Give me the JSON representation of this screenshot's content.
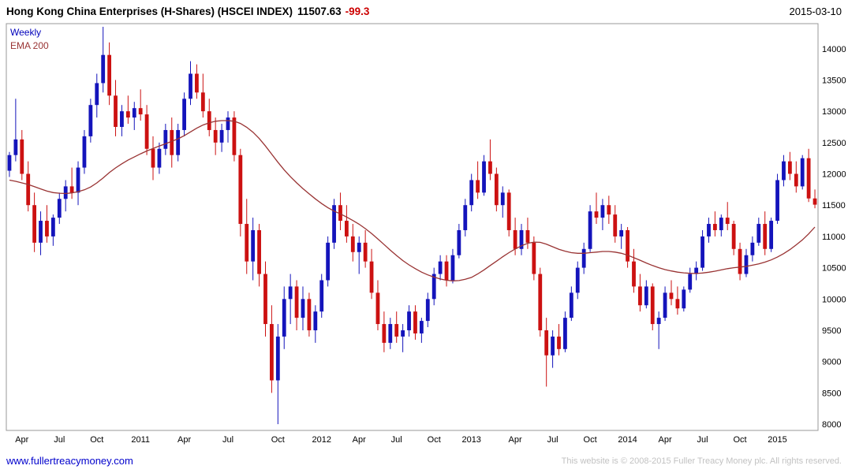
{
  "header": {
    "title": "Hong Kong China Enterprises (H-Shares) (HSCEI INDEX)",
    "price": "11507.63",
    "change": "-99.3",
    "date": "2015-03-10"
  },
  "legend": {
    "series": "Weekly",
    "overlay": "EMA 200"
  },
  "footer": {
    "website": "www.fullertreacymoney.com",
    "copyright": "This website is © 2008-2015 Fuller Treacy Money plc. All rights reserved."
  },
  "chart_data": {
    "type": "candlestick",
    "title": "Hong Kong China Enterprises (H-Shares) (HSCEI INDEX)",
    "timeframe": "Weekly",
    "last_price": 11507.63,
    "change": -99.3,
    "date": "2015-03-10",
    "ylim": [
      7900,
      14400
    ],
    "y_ticks": [
      8000,
      8500,
      9000,
      9500,
      10000,
      10500,
      11000,
      11500,
      12000,
      12500,
      13000,
      13500,
      14000
    ],
    "x_ticks": [
      {
        "label": "Apr",
        "i": 2
      },
      {
        "label": "Jul",
        "i": 8
      },
      {
        "label": "Oct",
        "i": 14
      },
      {
        "label": "2011",
        "i": 21
      },
      {
        "label": "Apr",
        "i": 28
      },
      {
        "label": "Jul",
        "i": 35
      },
      {
        "label": "Oct",
        "i": 43
      },
      {
        "label": "2012",
        "i": 50
      },
      {
        "label": "Apr",
        "i": 56
      },
      {
        "label": "Jul",
        "i": 62
      },
      {
        "label": "Oct",
        "i": 68
      },
      {
        "label": "2013",
        "i": 74
      },
      {
        "label": "Apr",
        "i": 81
      },
      {
        "label": "Jul",
        "i": 87
      },
      {
        "label": "Oct",
        "i": 93
      },
      {
        "label": "2014",
        "i": 99
      },
      {
        "label": "Apr",
        "i": 105
      },
      {
        "label": "Jul",
        "i": 111
      },
      {
        "label": "Oct",
        "i": 117
      },
      {
        "label": "2015",
        "i": 123
      }
    ],
    "colors": {
      "up": "#1414bb",
      "down": "#cc1111",
      "border": "#999999"
    },
    "candles": [
      [
        12050,
        12350,
        11950,
        12300
      ],
      [
        12300,
        13200,
        12200,
        12550
      ],
      [
        12550,
        12700,
        11900,
        12000
      ],
      [
        12000,
        12200,
        11400,
        11500
      ],
      [
        11500,
        11700,
        10750,
        10900
      ],
      [
        10900,
        11400,
        10700,
        11250
      ],
      [
        11250,
        11500,
        10900,
        11000
      ],
      [
        11000,
        11350,
        10850,
        11300
      ],
      [
        11300,
        11700,
        11200,
        11600
      ],
      [
        11600,
        11900,
        11400,
        11800
      ],
      [
        11800,
        12100,
        11600,
        11700
      ],
      [
        11700,
        12200,
        11500,
        12100
      ],
      [
        12100,
        12700,
        12000,
        12600
      ],
      [
        12600,
        13200,
        12500,
        13100
      ],
      [
        13100,
        13600,
        12900,
        13450
      ],
      [
        13450,
        14350,
        13300,
        13900
      ],
      [
        13900,
        14100,
        13100,
        13250
      ],
      [
        13250,
        13500,
        12600,
        12750
      ],
      [
        12750,
        13100,
        12600,
        13000
      ],
      [
        13000,
        13250,
        12800,
        12900
      ],
      [
        12900,
        13150,
        12700,
        13050
      ],
      [
        13050,
        13350,
        12850,
        12950
      ],
      [
        12950,
        13100,
        12300,
        12400
      ],
      [
        12400,
        12600,
        11900,
        12100
      ],
      [
        12100,
        12500,
        12000,
        12400
      ],
      [
        12400,
        12800,
        12300,
        12700
      ],
      [
        12700,
        12900,
        12100,
        12300
      ],
      [
        12300,
        12800,
        12200,
        12700
      ],
      [
        12700,
        13300,
        12600,
        13200
      ],
      [
        13200,
        13800,
        13100,
        13600
      ],
      [
        13600,
        13750,
        13200,
        13300
      ],
      [
        13300,
        13600,
        12900,
        13000
      ],
      [
        13000,
        13200,
        12600,
        12700
      ],
      [
        12700,
        12900,
        12300,
        12500
      ],
      [
        12500,
        12800,
        12350,
        12700
      ],
      [
        12700,
        13000,
        12500,
        12900
      ],
      [
        12900,
        13000,
        12200,
        12300
      ],
      [
        12300,
        12400,
        11000,
        11200
      ],
      [
        11200,
        11600,
        10400,
        10600
      ],
      [
        10600,
        11300,
        10300,
        11100
      ],
      [
        11100,
        11200,
        10200,
        10400
      ],
      [
        10400,
        10600,
        9400,
        9600
      ],
      [
        9600,
        9900,
        8500,
        8700
      ],
      [
        8700,
        9600,
        8000,
        9400
      ],
      [
        9400,
        10200,
        9200,
        10000
      ],
      [
        10000,
        10400,
        9600,
        10200
      ],
      [
        10200,
        10300,
        9500,
        9700
      ],
      [
        9700,
        10200,
        9500,
        10000
      ],
      [
        10000,
        10100,
        9400,
        9500
      ],
      [
        9500,
        9900,
        9300,
        9800
      ],
      [
        9800,
        10400,
        9700,
        10300
      ],
      [
        10300,
        11000,
        10200,
        10900
      ],
      [
        10900,
        11600,
        10800,
        11500
      ],
      [
        11500,
        11700,
        11100,
        11250
      ],
      [
        11250,
        11500,
        10900,
        11000
      ],
      [
        11000,
        11200,
        10600,
        10750
      ],
      [
        10750,
        11000,
        10400,
        10900
      ],
      [
        10900,
        11100,
        10500,
        10600
      ],
      [
        10600,
        10800,
        10000,
        10100
      ],
      [
        10100,
        10300,
        9500,
        9600
      ],
      [
        9600,
        9800,
        9150,
        9300
      ],
      [
        9300,
        9700,
        9200,
        9600
      ],
      [
        9600,
        9800,
        9300,
        9400
      ],
      [
        9400,
        9600,
        9150,
        9500
      ],
      [
        9500,
        9900,
        9400,
        9800
      ],
      [
        9800,
        9900,
        9350,
        9450
      ],
      [
        9450,
        9700,
        9300,
        9650
      ],
      [
        9650,
        10100,
        9550,
        10000
      ],
      [
        10000,
        10500,
        9900,
        10400
      ],
      [
        10400,
        10700,
        10300,
        10600
      ],
      [
        10600,
        10700,
        10200,
        10300
      ],
      [
        10300,
        10800,
        10250,
        10700
      ],
      [
        10700,
        11200,
        10650,
        11100
      ],
      [
        11100,
        11600,
        11000,
        11500
      ],
      [
        11500,
        12000,
        11400,
        11900
      ],
      [
        11900,
        12200,
        11600,
        11700
      ],
      [
        11700,
        12300,
        11650,
        12200
      ],
      [
        12200,
        12550,
        11900,
        12000
      ],
      [
        12000,
        12100,
        11400,
        11500
      ],
      [
        11500,
        11800,
        11300,
        11700
      ],
      [
        11700,
        11750,
        11000,
        11100
      ],
      [
        11100,
        11300,
        10700,
        10800
      ],
      [
        10800,
        11200,
        10700,
        11100
      ],
      [
        11100,
        11300,
        10800,
        10900
      ],
      [
        10900,
        11000,
        10300,
        10400
      ],
      [
        10400,
        10500,
        9400,
        9500
      ],
      [
        9500,
        9700,
        8600,
        9100
      ],
      [
        9100,
        9500,
        8900,
        9400
      ],
      [
        9400,
        9600,
        9100,
        9200
      ],
      [
        9200,
        9800,
        9150,
        9700
      ],
      [
        9700,
        10200,
        9650,
        10100
      ],
      [
        10100,
        10600,
        10000,
        10500
      ],
      [
        10500,
        10900,
        10400,
        10800
      ],
      [
        10800,
        11500,
        10750,
        11400
      ],
      [
        11400,
        11700,
        11200,
        11300
      ],
      [
        11300,
        11600,
        11100,
        11500
      ],
      [
        11500,
        11650,
        11200,
        11350
      ],
      [
        11350,
        11500,
        10900,
        11000
      ],
      [
        11000,
        11200,
        10800,
        11100
      ],
      [
        11100,
        11150,
        10500,
        10600
      ],
      [
        10600,
        10800,
        10100,
        10200
      ],
      [
        10200,
        10400,
        9800,
        9900
      ],
      [
        9900,
        10300,
        9850,
        10200
      ],
      [
        10200,
        10250,
        9500,
        9600
      ],
      [
        9600,
        9800,
        9200,
        9700
      ],
      [
        9700,
        10200,
        9650,
        10100
      ],
      [
        10100,
        10300,
        9900,
        10000
      ],
      [
        10000,
        10200,
        9750,
        9850
      ],
      [
        9850,
        10200,
        9800,
        10150
      ],
      [
        10150,
        10500,
        10100,
        10400
      ],
      [
        10400,
        10600,
        10300,
        10500
      ],
      [
        10500,
        11100,
        10450,
        11000
      ],
      [
        11000,
        11300,
        10900,
        11200
      ],
      [
        11200,
        11400,
        11000,
        11100
      ],
      [
        11100,
        11350,
        11000,
        11300
      ],
      [
        11300,
        11550,
        11100,
        11200
      ],
      [
        11200,
        11250,
        10700,
        10800
      ],
      [
        10800,
        10900,
        10300,
        10400
      ],
      [
        10400,
        10800,
        10350,
        10700
      ],
      [
        10700,
        11000,
        10600,
        10900
      ],
      [
        10900,
        11300,
        10850,
        11200
      ],
      [
        11200,
        11400,
        10700,
        10800
      ],
      [
        10800,
        11300,
        10750,
        11250
      ],
      [
        11250,
        12000,
        11200,
        11900
      ],
      [
        11900,
        12300,
        11800,
        12200
      ],
      [
        12200,
        12350,
        11900,
        12000
      ],
      [
        12000,
        12200,
        11700,
        11800
      ],
      [
        11800,
        12300,
        11750,
        12250
      ],
      [
        12250,
        12400,
        11550,
        11607
      ],
      [
        11607,
        11750,
        11450,
        11507.63
      ]
    ],
    "overlay": {
      "name": "EMA 200",
      "color": "#993333",
      "values": [
        11900,
        11880,
        11855,
        11830,
        11795,
        11760,
        11725,
        11700,
        11690,
        11685,
        11695,
        11715,
        11745,
        11790,
        11855,
        11935,
        12020,
        12095,
        12160,
        12220,
        12270,
        12320,
        12365,
        12405,
        12445,
        12480,
        12520,
        12560,
        12610,
        12670,
        12730,
        12780,
        12815,
        12840,
        12850,
        12850,
        12840,
        12805,
        12745,
        12665,
        12565,
        12445,
        12315,
        12185,
        12065,
        11955,
        11855,
        11765,
        11680,
        11600,
        11525,
        11460,
        11405,
        11360,
        11310,
        11255,
        11195,
        11125,
        11045,
        10960,
        10870,
        10780,
        10695,
        10615,
        10545,
        10485,
        10430,
        10385,
        10350,
        10320,
        10300,
        10290,
        10295,
        10315,
        10345,
        10400,
        10465,
        10535,
        10605,
        10675,
        10740,
        10800,
        10850,
        10890,
        10910,
        10905,
        10875,
        10835,
        10795,
        10765,
        10740,
        10730,
        10730,
        10740,
        10750,
        10760,
        10760,
        10750,
        10730,
        10700,
        10660,
        10620,
        10575,
        10535,
        10500,
        10470,
        10448,
        10430,
        10418,
        10410,
        10408,
        10415,
        10428,
        10445,
        10465,
        10485,
        10500,
        10510,
        10522,
        10540,
        10560,
        10590,
        10625,
        10670,
        10725,
        10790,
        10865,
        10945,
        11040,
        11150
      ]
    }
  }
}
